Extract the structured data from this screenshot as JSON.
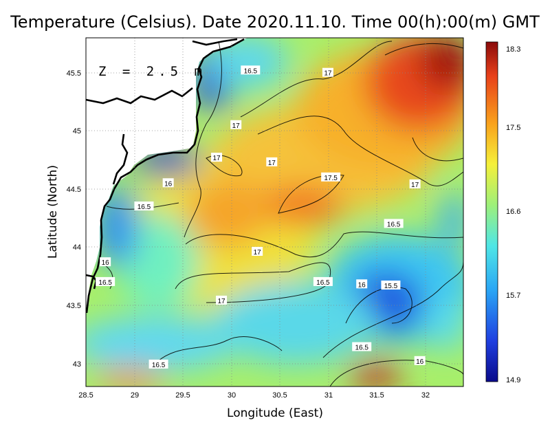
{
  "title": "Temperature (Celsius). Date 2020.11.10. Time 00(h):00(m)  GMT",
  "depth_label": "Z  =  2.5 m",
  "x_axis": {
    "label": "Longitude (East)",
    "range": [
      28.5,
      32.4
    ],
    "ticks": [
      "28.5",
      "29",
      "29.5",
      "30",
      "30.5",
      "31",
      "31.5",
      "32"
    ]
  },
  "y_axis": {
    "label": "Latitude (North)",
    "range": [
      42.8,
      45.8
    ],
    "ticks": [
      "43",
      "43.5",
      "44",
      "44.5",
      "45",
      "45.5"
    ]
  },
  "grid": true,
  "colorbar": {
    "min": 14.9,
    "max": 18.3,
    "ticks": [
      "18.3",
      "17.5",
      "16.6",
      "15.7",
      "14.9"
    ],
    "colors": [
      "#0a0a8a",
      "#1f3fe0",
      "#2aa6f5",
      "#4fe6e6",
      "#9ef07a",
      "#f5f03a",
      "#f9a21c",
      "#e8401a",
      "#8a0a0a"
    ]
  },
  "contour_labels": [
    {
      "text": "16.5",
      "lon": 30.2,
      "lat": 45.52
    },
    {
      "text": "17",
      "lon": 31.0,
      "lat": 45.5
    },
    {
      "text": "17",
      "lon": 30.05,
      "lat": 45.05
    },
    {
      "text": "17",
      "lon": 29.85,
      "lat": 44.77
    },
    {
      "text": "17",
      "lon": 30.42,
      "lat": 44.73
    },
    {
      "text": "17.5",
      "lon": 31.03,
      "lat": 44.6
    },
    {
      "text": "17",
      "lon": 31.9,
      "lat": 44.54
    },
    {
      "text": "16",
      "lon": 29.35,
      "lat": 44.55
    },
    {
      "text": "16.5",
      "lon": 29.1,
      "lat": 44.35
    },
    {
      "text": "16.5",
      "lon": 31.68,
      "lat": 44.2
    },
    {
      "text": "17",
      "lon": 30.27,
      "lat": 43.96
    },
    {
      "text": "16",
      "lon": 28.7,
      "lat": 43.87
    },
    {
      "text": "16.5",
      "lon": 28.7,
      "lat": 43.7
    },
    {
      "text": "16.5",
      "lon": 30.95,
      "lat": 43.7
    },
    {
      "text": "16",
      "lon": 31.35,
      "lat": 43.68
    },
    {
      "text": "15.5",
      "lon": 31.65,
      "lat": 43.67
    },
    {
      "text": "17",
      "lon": 29.9,
      "lat": 43.54
    },
    {
      "text": "16.5",
      "lon": 31.35,
      "lat": 43.14
    },
    {
      "text": "16",
      "lon": 31.95,
      "lat": 43.02
    },
    {
      "text": "16.5",
      "lon": 29.25,
      "lat": 42.99
    }
  ]
}
